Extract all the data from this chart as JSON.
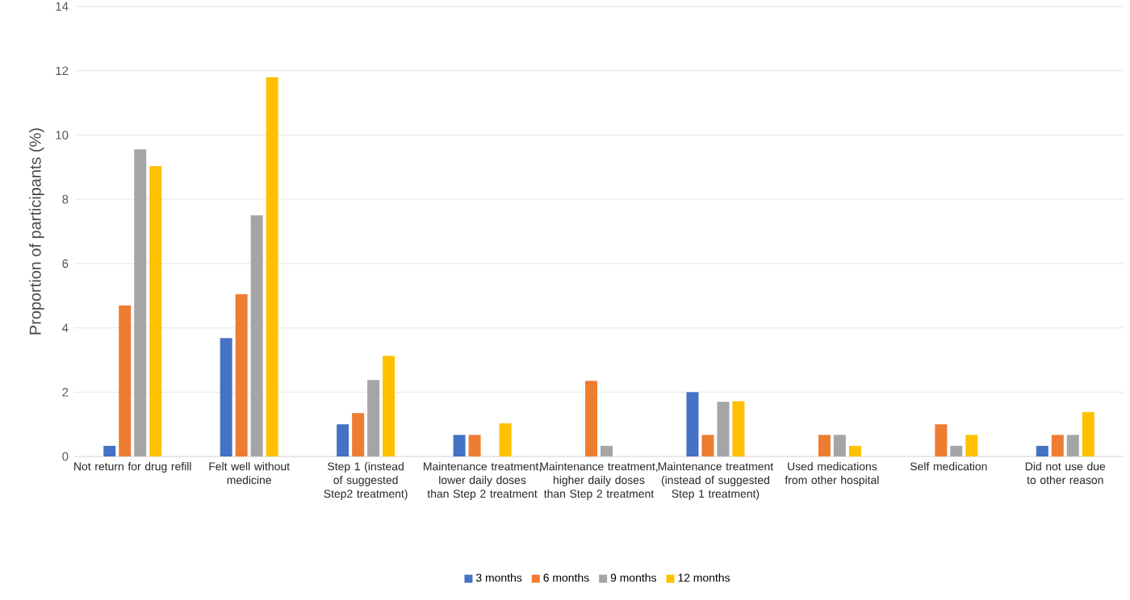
{
  "chart_data": {
    "type": "bar",
    "ylabel": "Proportion of participants (%)",
    "categories": [
      "Not return for drug refill",
      "Felt well without medicine",
      "Step 1 (instead of suggested Step2 treatment)",
      "Maintenance treatment, lower daily doses than Step 2 treatment",
      "Maintenance treatment, higher daily doses than Step 2 treatment",
      "Maintenance treatment (instead of suggested Step 1 treatment)",
      "Used medications from other hospital",
      "Self medication",
      "Did not use due to other reason"
    ],
    "series": [
      {
        "name": "3 months",
        "color": "#4472c4",
        "values": [
          0.33,
          3.68,
          1.0,
          0.67,
          0,
          2.0,
          0,
          0,
          0.33
        ]
      },
      {
        "name": "6 months",
        "color": "#ed7d31",
        "values": [
          4.7,
          5.05,
          1.35,
          0.67,
          2.35,
          0.67,
          0.67,
          1.0,
          0.67
        ]
      },
      {
        "name": "9 months",
        "color": "#a5a5a5",
        "values": [
          9.55,
          7.5,
          2.38,
          0,
          0.33,
          1.7,
          0.67,
          0.33,
          0.67
        ]
      },
      {
        "name": "12 months",
        "color": "#ffc000",
        "values": [
          9.03,
          11.8,
          3.13,
          1.03,
          0,
          1.72,
          0.33,
          0.67,
          1.38
        ]
      }
    ],
    "ylim": [
      0,
      14
    ],
    "yticks": [
      0,
      2,
      4,
      6,
      8,
      10,
      12,
      14
    ],
    "grid": "y",
    "legend": "bottom"
  }
}
